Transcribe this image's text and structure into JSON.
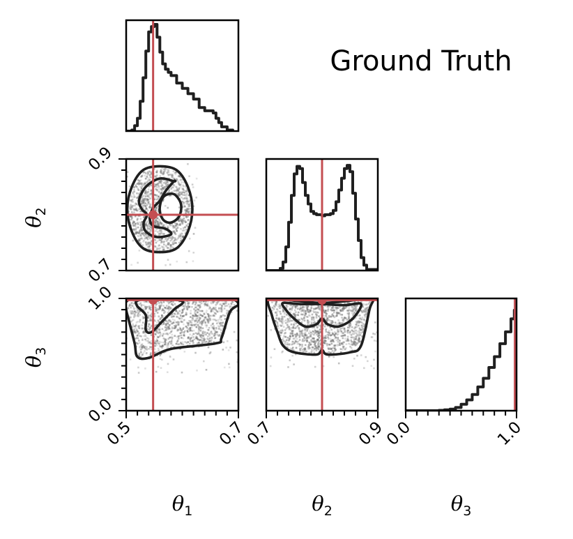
{
  "chart_data": {
    "type": "corner",
    "title": "Ground Truth",
    "parameters": [
      {
        "name": "θ",
        "sub": "1",
        "range": [
          0.5,
          0.7
        ],
        "ticks": [
          "0.5",
          "0.7"
        ],
        "truth": 0.548
      },
      {
        "name": "θ",
        "sub": "2",
        "range": [
          0.7,
          0.9
        ],
        "ticks": [
          "0.7",
          "0.9"
        ],
        "truth": 0.8
      },
      {
        "name": "θ",
        "sub": "3",
        "range": [
          0.0,
          1.0
        ],
        "ticks": [
          "0.0",
          "1.0"
        ],
        "truth": 0.985
      }
    ],
    "marginals": [
      {
        "param": 1,
        "x": [
          0.5,
          0.51,
          0.515,
          0.52,
          0.525,
          0.53,
          0.535,
          0.54,
          0.545,
          0.55,
          0.555,
          0.56,
          0.565,
          0.57,
          0.575,
          0.58,
          0.59,
          0.6,
          0.61,
          0.62,
          0.63,
          0.64,
          0.65,
          0.655,
          0.66,
          0.665,
          0.67,
          0.68,
          0.69
        ],
        "y": [
          0,
          0.01,
          0.05,
          0.12,
          0.28,
          0.5,
          0.75,
          0.93,
          0.98,
          1.0,
          0.88,
          0.74,
          0.63,
          0.58,
          0.55,
          0.52,
          0.45,
          0.4,
          0.35,
          0.3,
          0.22,
          0.19,
          0.19,
          0.17,
          0.12,
          0.08,
          0.04,
          0.01,
          0
        ]
      },
      {
        "param": 2,
        "x": [
          0.7,
          0.72,
          0.725,
          0.73,
          0.735,
          0.74,
          0.745,
          0.75,
          0.755,
          0.76,
          0.765,
          0.77,
          0.775,
          0.78,
          0.785,
          0.79,
          0.795,
          0.8,
          0.805,
          0.81,
          0.815,
          0.82,
          0.825,
          0.83,
          0.835,
          0.84,
          0.845,
          0.85,
          0.855,
          0.86,
          0.865,
          0.87,
          0.875,
          0.88,
          0.9
        ],
        "y": [
          0,
          0,
          0.02,
          0.08,
          0.22,
          0.45,
          0.7,
          0.9,
          0.97,
          0.95,
          0.82,
          0.7,
          0.62,
          0.55,
          0.53,
          0.52,
          0.52,
          0.51,
          0.52,
          0.52,
          0.53,
          0.56,
          0.64,
          0.75,
          0.86,
          0.95,
          0.98,
          0.92,
          0.72,
          0.48,
          0.28,
          0.12,
          0.05,
          0.01,
          0
        ]
      },
      {
        "param": 3,
        "x": [
          0.0,
          0.2,
          0.3,
          0.35,
          0.4,
          0.45,
          0.5,
          0.55,
          0.6,
          0.65,
          0.7,
          0.75,
          0.8,
          0.85,
          0.9,
          0.95,
          0.98,
          1.0
        ],
        "y": [
          0,
          0,
          0.003,
          0.008,
          0.015,
          0.03,
          0.06,
          0.1,
          0.15,
          0.22,
          0.3,
          0.4,
          0.5,
          0.62,
          0.73,
          0.85,
          0.93,
          0.97
        ]
      }
    ],
    "joint_contours": [
      {
        "params": [
          1,
          2
        ],
        "levels": [
          [
            [
              0.56,
              0.887
            ],
            [
              0.53,
              0.88
            ],
            [
              0.51,
              0.85
            ],
            [
              0.502,
              0.81
            ],
            [
              0.51,
              0.77
            ],
            [
              0.53,
              0.74
            ],
            [
              0.56,
              0.733
            ],
            [
              0.59,
              0.74
            ],
            [
              0.61,
              0.77
            ],
            [
              0.618,
              0.81
            ],
            [
              0.61,
              0.85
            ],
            [
              0.59,
              0.88
            ]
          ],
          [
            [
              0.585,
              0.86
            ],
            [
              0.56,
              0.865
            ],
            [
              0.535,
              0.85
            ],
            [
              0.523,
              0.826
            ],
            [
              0.528,
              0.81
            ],
            [
              0.537,
              0.8
            ],
            [
              0.531,
              0.785
            ],
            [
              0.535,
              0.77
            ],
            [
              0.555,
              0.76
            ],
            [
              0.58,
              0.765
            ],
            [
              0.57,
              0.775
            ],
            [
              0.548,
              0.78
            ],
            [
              0.542,
              0.795
            ],
            [
              0.548,
              0.812
            ],
            [
              0.56,
              0.825
            ],
            [
              0.57,
              0.842
            ],
            [
              0.585,
              0.86
            ]
          ],
          [
            [
              0.57,
              0.835
            ],
            [
              0.585,
              0.837
            ],
            [
              0.596,
              0.824
            ],
            [
              0.598,
              0.81
            ],
            [
              0.593,
              0.795
            ],
            [
              0.58,
              0.786
            ],
            [
              0.567,
              0.79
            ],
            [
              0.56,
              0.805
            ],
            [
              0.562,
              0.824
            ]
          ]
        ]
      },
      {
        "params": [
          1,
          3
        ],
        "levels": [
          [
            [
              0.5,
              0.9
            ],
            [
              0.5,
              0.97
            ],
            [
              0.52,
              1.0
            ],
            [
              0.6,
              1.0
            ],
            [
              0.68,
              1.0
            ],
            [
              0.7,
              0.95
            ],
            [
              0.685,
              0.88
            ],
            [
              0.67,
              0.65
            ],
            [
              0.66,
              0.6
            ],
            [
              0.58,
              0.55
            ],
            [
              0.54,
              0.47
            ],
            [
              0.52,
              0.48
            ],
            [
              0.515,
              0.6
            ],
            [
              0.505,
              0.8
            ]
          ],
          [
            [
              0.52,
              0.98
            ],
            [
              0.55,
              1.0
            ],
            [
              0.6,
              0.975
            ],
            [
              0.585,
              0.9
            ],
            [
              0.565,
              0.8
            ],
            [
              0.545,
              0.7
            ],
            [
              0.535,
              0.72
            ],
            [
              0.535,
              0.85
            ],
            [
              0.52,
              0.93
            ]
          ]
        ]
      },
      {
        "params": [
          2,
          3
        ],
        "levels": [
          [
            [
              0.705,
              1.0
            ],
            [
              0.75,
              0.98
            ],
            [
              0.8,
              0.96
            ],
            [
              0.85,
              0.98
            ],
            [
              0.89,
              1.0
            ],
            [
              0.885,
              0.9
            ],
            [
              0.87,
              0.58
            ],
            [
              0.85,
              0.52
            ],
            [
              0.81,
              0.5
            ],
            [
              0.8,
              0.54
            ],
            [
              0.79,
              0.5
            ],
            [
              0.75,
              0.52
            ],
            [
              0.73,
              0.58
            ],
            [
              0.72,
              0.7
            ],
            [
              0.71,
              0.85
            ]
          ],
          [
            [
              0.73,
              0.96
            ],
            [
              0.76,
              0.95
            ],
            [
              0.8,
              0.95
            ],
            [
              0.84,
              0.94
            ],
            [
              0.87,
              0.95
            ],
            [
              0.855,
              0.82
            ],
            [
              0.83,
              0.75
            ],
            [
              0.81,
              0.77
            ],
            [
              0.8,
              0.82
            ],
            [
              0.79,
              0.77
            ],
            [
              0.77,
              0.75
            ],
            [
              0.75,
              0.82
            ],
            [
              0.735,
              0.9
            ]
          ]
        ]
      }
    ],
    "colors": {
      "line": "#1f1f1f",
      "truth": "#c44e52",
      "density": "#707070"
    }
  }
}
